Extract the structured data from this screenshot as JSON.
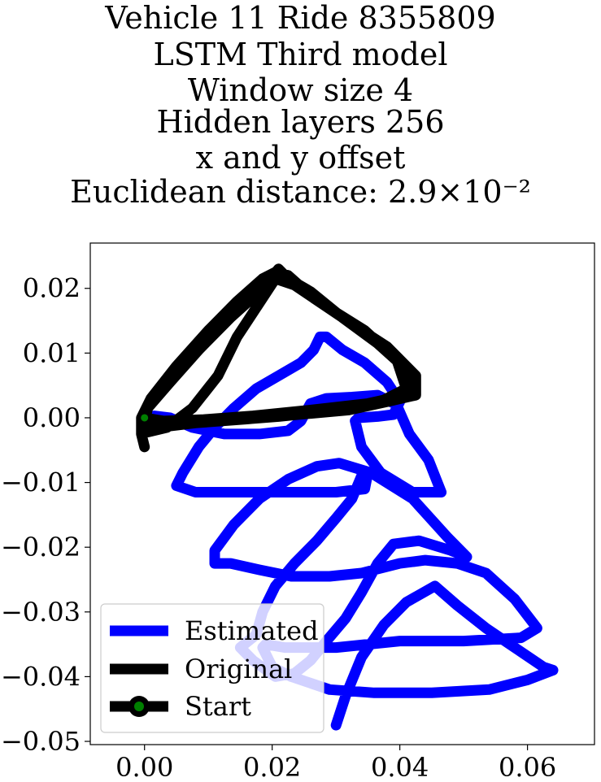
{
  "chart_data": {
    "type": "line",
    "title_lines": [
      "Vehicle 11 Ride 8355809",
      "LSTM Third model",
      "Window size 4",
      "Hidden layers 256",
      "x and y offset",
      "Euclidean distance: 2.9×10⁻²"
    ],
    "xlabel": "",
    "ylabel": "",
    "xlim": [
      -0.0085,
      0.0705
    ],
    "ylim": [
      -0.0505,
      0.027
    ],
    "xticks": [
      0.0,
      0.02,
      0.04,
      0.06
    ],
    "xtick_labels": [
      "0.00",
      "0.02",
      "0.04",
      "0.06"
    ],
    "yticks": [
      0.02,
      0.01,
      0.0,
      -0.01,
      -0.02,
      -0.03,
      -0.04,
      -0.05
    ],
    "ytick_labels": [
      "0.02",
      "0.01",
      "0.00",
      "−0.01",
      "−0.02",
      "−0.03",
      "−0.04",
      "−0.05"
    ],
    "grid": false,
    "legend_position": "lower-left",
    "legend": [
      "Estimated",
      "Original",
      "Start"
    ],
    "series": [
      {
        "name": "Estimated",
        "color": "#0000ff",
        "points": [
          [
            0.03,
            -0.0475
          ],
          [
            0.0315,
            -0.043
          ],
          [
            0.034,
            -0.037
          ],
          [
            0.0375,
            -0.032
          ],
          [
            0.041,
            -0.0285
          ],
          [
            0.0455,
            -0.026
          ],
          [
            0.049,
            -0.029
          ],
          [
            0.0535,
            -0.0325
          ],
          [
            0.058,
            -0.0355
          ],
          [
            0.0625,
            -0.0385
          ],
          [
            0.064,
            -0.039
          ],
          [
            0.06,
            -0.0405
          ],
          [
            0.054,
            -0.042
          ],
          [
            0.045,
            -0.0425
          ],
          [
            0.036,
            -0.0425
          ],
          [
            0.029,
            -0.042
          ],
          [
            0.023,
            -0.04
          ],
          [
            0.02,
            -0.0385
          ],
          [
            0.0185,
            -0.0355
          ],
          [
            0.019,
            -0.035
          ],
          [
            0.022,
            -0.0355
          ],
          [
            0.03,
            -0.0355
          ],
          [
            0.04,
            -0.0345
          ],
          [
            0.05,
            -0.0345
          ],
          [
            0.059,
            -0.034
          ],
          [
            0.0615,
            -0.0325
          ],
          [
            0.058,
            -0.028
          ],
          [
            0.0535,
            -0.024
          ],
          [
            0.049,
            -0.0225
          ],
          [
            0.044,
            -0.022
          ],
          [
            0.04,
            -0.0225
          ],
          [
            0.034,
            -0.024
          ],
          [
            0.029,
            -0.0245
          ],
          [
            0.023,
            -0.0245
          ],
          [
            0.018,
            -0.0235
          ],
          [
            0.0135,
            -0.0225
          ],
          [
            0.011,
            -0.0225
          ],
          [
            0.011,
            -0.0205
          ],
          [
            0.014,
            -0.0165
          ],
          [
            0.018,
            -0.0125
          ],
          [
            0.0225,
            -0.0095
          ],
          [
            0.027,
            -0.0075
          ],
          [
            0.0305,
            -0.007
          ],
          [
            0.0355,
            -0.0085
          ],
          [
            0.042,
            -0.0125
          ],
          [
            0.0475,
            -0.0185
          ],
          [
            0.0505,
            -0.0215
          ],
          [
            0.048,
            -0.0205
          ],
          [
            0.043,
            -0.019
          ],
          [
            0.039,
            -0.0195
          ],
          [
            0.0365,
            -0.0225
          ],
          [
            0.034,
            -0.027
          ],
          [
            0.0315,
            -0.031
          ],
          [
            0.0285,
            -0.0345
          ],
          [
            0.026,
            -0.0375
          ],
          [
            0.0235,
            -0.0395
          ],
          [
            0.0205,
            -0.04
          ],
          [
            0.017,
            -0.0375
          ],
          [
            0.015,
            -0.0355
          ],
          [
            0.0175,
            -0.0335
          ],
          [
            0.0185,
            -0.03
          ],
          [
            0.0205,
            -0.026
          ],
          [
            0.0235,
            -0.0225
          ],
          [
            0.027,
            -0.019
          ],
          [
            0.03,
            -0.0155
          ],
          [
            0.0325,
            -0.0125
          ],
          [
            0.034,
            -0.009
          ],
          [
            0.035,
            -0.0085
          ],
          [
            0.0345,
            -0.011
          ],
          [
            0.03,
            -0.0115
          ],
          [
            0.022,
            -0.0115
          ],
          [
            0.014,
            -0.0115
          ],
          [
            0.008,
            -0.0115
          ],
          [
            0.005,
            -0.0105
          ],
          [
            0.006,
            -0.0085
          ],
          [
            0.0085,
            -0.0045
          ],
          [
            0.011,
            -0.0015
          ],
          [
            0.014,
            0.0015
          ],
          [
            0.0175,
            0.0045
          ],
          [
            0.021,
            0.0065
          ],
          [
            0.0245,
            0.0085
          ],
          [
            0.0265,
            0.0105
          ],
          [
            0.0275,
            0.0125
          ],
          [
            0.0285,
            0.0125
          ],
          [
            0.031,
            0.0105
          ],
          [
            0.0345,
            0.0085
          ],
          [
            0.038,
            0.0055
          ],
          [
            0.04,
            0.0025
          ],
          [
            0.039,
            0.0005
          ],
          [
            0.0365,
            0.0002
          ],
          [
            0.0335,
            0.0
          ],
          [
            0.033,
            -0.0005
          ],
          [
            0.034,
            -0.0045
          ],
          [
            0.037,
            -0.0085
          ],
          [
            0.042,
            -0.0115
          ],
          [
            0.0465,
            -0.0115
          ],
          [
            0.0445,
            -0.0065
          ],
          [
            0.0415,
            -0.0025
          ],
          [
            0.0395,
            0.002
          ],
          [
            0.0365,
            0.0035
          ],
          [
            0.0325,
            0.0032
          ],
          [
            0.0285,
            0.003
          ],
          [
            0.026,
            0.0022
          ],
          [
            0.0245,
            -0.0005
          ],
          [
            0.0225,
            -0.002
          ],
          [
            0.018,
            -0.0025
          ],
          [
            0.0125,
            -0.0025
          ],
          [
            0.0075,
            -0.0015
          ],
          [
            0.004,
            0.0
          ],
          [
            0.0015,
            0.0003
          ],
          [
            0.0,
            0.0
          ]
        ]
      },
      {
        "name": "Original",
        "color": "#000000",
        "points": [
          [
            0.0,
            -0.0045
          ],
          [
            -0.0005,
            -0.0025
          ],
          [
            -0.0005,
            0.0
          ],
          [
            0.001,
            0.003
          ],
          [
            0.005,
            0.008
          ],
          [
            0.01,
            0.0135
          ],
          [
            0.0145,
            0.018
          ],
          [
            0.0185,
            0.0215
          ],
          [
            0.0205,
            0.0225
          ],
          [
            0.0225,
            0.022
          ],
          [
            0.0265,
            0.0185
          ],
          [
            0.0325,
            0.0145
          ],
          [
            0.038,
            0.011
          ],
          [
            0.0425,
            0.0065
          ],
          [
            0.0425,
            0.0035
          ],
          [
            0.038,
            0.0025
          ],
          [
            0.032,
            0.0012
          ],
          [
            0.024,
            0.0005
          ],
          [
            0.016,
            -0.0002
          ],
          [
            0.008,
            -0.0008
          ],
          [
            0.002,
            -0.0015
          ],
          [
            0.0005,
            -0.0022
          ],
          [
            0.0035,
            -0.0015
          ],
          [
            0.0075,
            0.0015
          ],
          [
            0.0115,
            0.0065
          ],
          [
            0.0145,
            0.0125
          ],
          [
            0.0175,
            0.017
          ],
          [
            0.0205,
            0.0215
          ],
          [
            0.0235,
            0.0205
          ],
          [
            0.028,
            0.0175
          ],
          [
            0.0345,
            0.0135
          ],
          [
            0.0395,
            0.009
          ],
          [
            0.041,
            0.0045
          ],
          [
            0.037,
            0.0025
          ],
          [
            0.029,
            0.001
          ],
          [
            0.021,
            0.0002
          ],
          [
            0.012,
            -0.0005
          ],
          [
            0.005,
            -0.001
          ],
          [
            0.0,
            -0.0008
          ],
          [
            0.0005,
            0.0015
          ],
          [
            0.004,
            0.0055
          ],
          [
            0.0085,
            0.0105
          ],
          [
            0.0135,
            0.0155
          ],
          [
            0.018,
            0.0195
          ],
          [
            0.021,
            0.023
          ],
          [
            0.0225,
            0.0215
          ],
          [
            0.026,
            0.0195
          ],
          [
            0.031,
            0.0155
          ],
          [
            0.0365,
            0.0115
          ],
          [
            0.041,
            0.0075
          ],
          [
            0.0425,
            0.0045
          ],
          [
            0.041,
            0.0035
          ],
          [
            0.035,
            0.0022
          ],
          [
            0.026,
            0.0012
          ],
          [
            0.017,
            0.0003
          ],
          [
            0.009,
            -0.0003
          ],
          [
            0.003,
            -0.0005
          ],
          [
            0.0,
            0.0
          ]
        ]
      }
    ],
    "start_point": {
      "name": "Start",
      "x": 0.0,
      "y": 0.0,
      "marker_color": "#008000",
      "edge_color": "#000000"
    }
  }
}
